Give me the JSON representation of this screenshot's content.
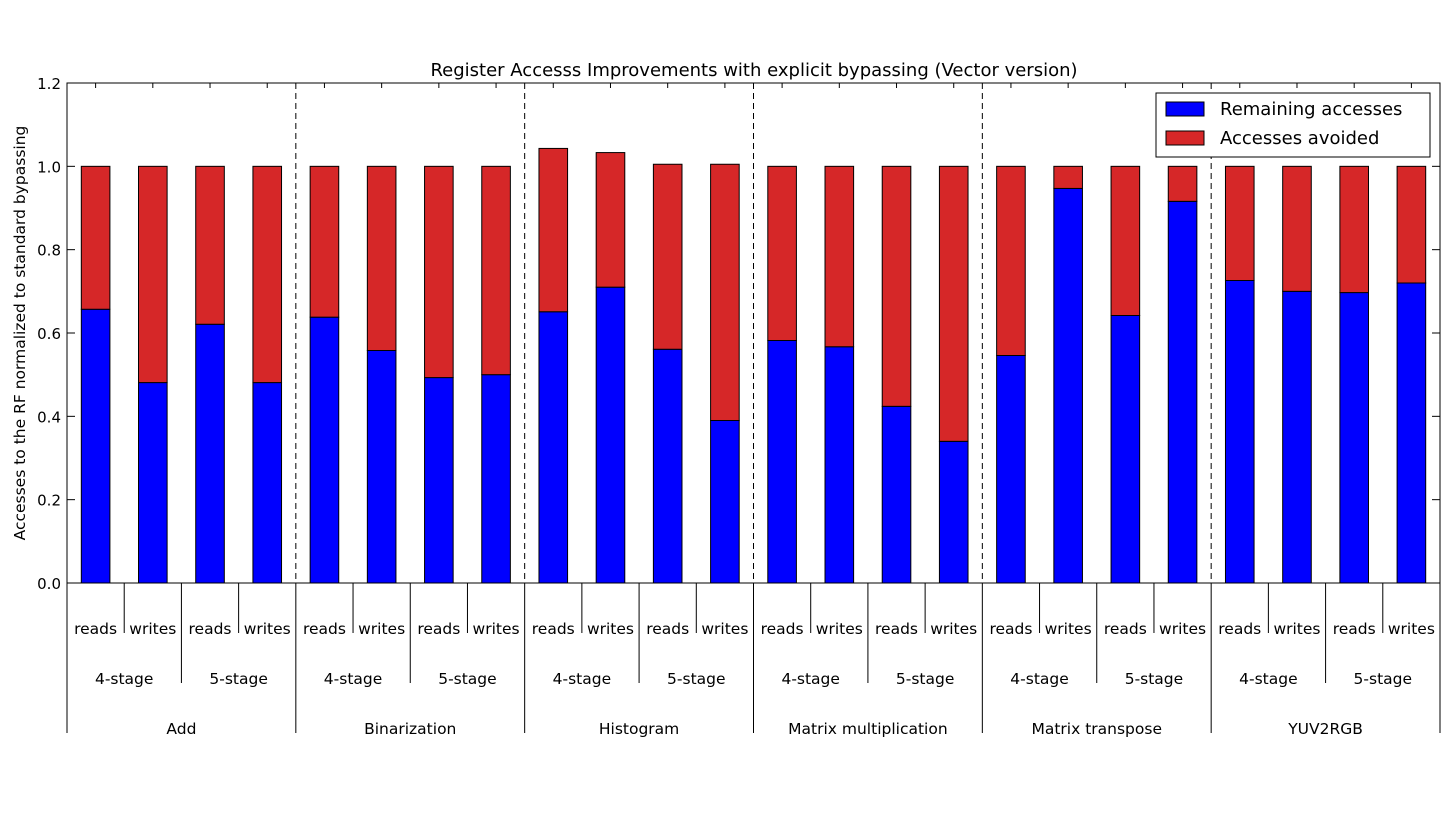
{
  "chart_data": {
    "type": "bar",
    "stacked": true,
    "title": "Register Accesss Improvements with explicit bypassing (Vector version)",
    "xlabel": "",
    "ylabel": "Accesses to the RF normalized to standard bypassing",
    "ylim": [
      0,
      1.2
    ],
    "yticks": [
      "0.0",
      "0.2",
      "0.4",
      "0.6",
      "0.8",
      "1.0",
      "1.2"
    ],
    "grid": false,
    "legend_position": "top-right",
    "colors": {
      "remaining": "#0000ff",
      "avoided": "#d62728",
      "edge": "#000000"
    },
    "groups": [
      "Add",
      "Binarization",
      "Histogram",
      "Matrix multiplication",
      "Matrix transpose",
      "YUV2RGB"
    ],
    "stages": [
      "4-stage",
      "5-stage"
    ],
    "kinds": [
      "reads",
      "writes"
    ],
    "series": [
      {
        "name": "Remaining accesses",
        "values": [
          0.657,
          0.481,
          0.621,
          0.481,
          0.638,
          0.558,
          0.493,
          0.5,
          0.651,
          0.71,
          0.561,
          0.39,
          0.582,
          0.567,
          0.424,
          0.34,
          0.546,
          0.947,
          0.642,
          0.916,
          0.726,
          0.7,
          0.697,
          0.72
        ]
      },
      {
        "name": "Accesses avoided",
        "values": [
          0.343,
          0.519,
          0.379,
          0.519,
          0.362,
          0.442,
          0.507,
          0.5,
          0.392,
          0.323,
          0.444,
          0.615,
          0.418,
          0.433,
          0.576,
          0.66,
          0.454,
          0.053,
          0.358,
          0.084,
          0.274,
          0.3,
          0.303,
          0.28
        ]
      }
    ]
  }
}
